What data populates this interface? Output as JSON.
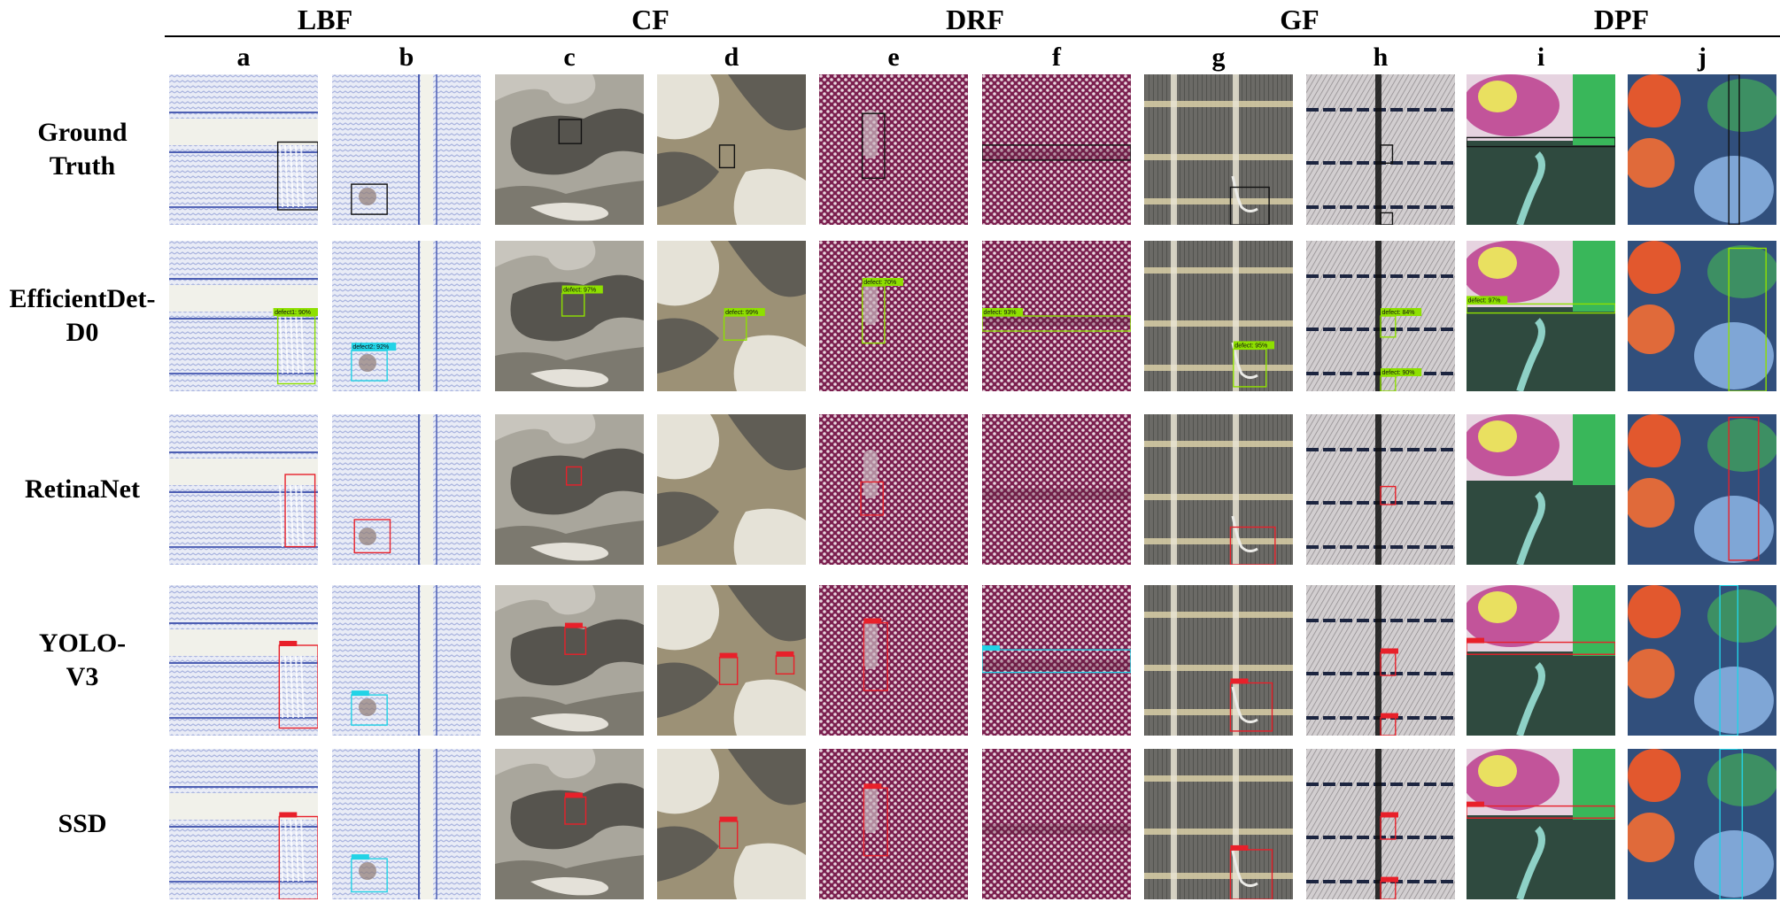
{
  "groups": [
    {
      "label": "LBF",
      "cols": [
        "a",
        "b"
      ]
    },
    {
      "label": "CF",
      "cols": [
        "c",
        "d"
      ]
    },
    {
      "label": "DRF",
      "cols": [
        "e",
        "f"
      ]
    },
    {
      "label": "GF",
      "cols": [
        "g",
        "h"
      ]
    },
    {
      "label": "DPF",
      "cols": [
        "i",
        "j"
      ]
    }
  ],
  "columns": [
    "a",
    "b",
    "c",
    "d",
    "e",
    "f",
    "g",
    "h",
    "i",
    "j"
  ],
  "column_fabric": {
    "a": "LBF",
    "b": "LBF",
    "c": "CF",
    "d": "CF",
    "e": "DRF",
    "f": "DRF",
    "g": "GF",
    "h": "GF",
    "i": "DPF",
    "j": "DPF"
  },
  "rows": [
    "Ground\nTruth",
    "EfficientDet-\nD0",
    "RetinaNet",
    "YOLO-\nV3",
    "SSD"
  ],
  "model_colors": {
    "Ground Truth": "#111111",
    "EfficientDet-D0": "#8ee000",
    "RetinaNet": "#e8202a",
    "YOLO-V3": "#e8202a",
    "SSD": "#e8202a",
    "cyan": "#22d3e6"
  },
  "detections": {
    "EfficientDet-D0": {
      "a": "defect1: 90%",
      "b": "defect2: 92%",
      "c": "defect: 97%",
      "d": "defect: 99%",
      "e": "defect: 70%",
      "f": "defect: 93%",
      "g": "defect: 95%",
      "h1": "defect: 84%",
      "h2": "defect: 90%",
      "i": "defect: 97%"
    }
  }
}
